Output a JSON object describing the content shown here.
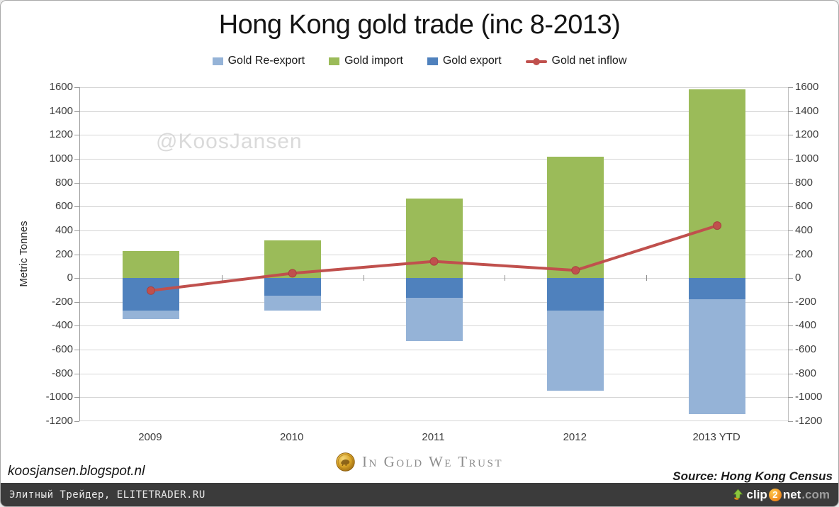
{
  "page": {
    "watermark": "@KoosJansen",
    "footer": {
      "blog_url": "koosjansen.blogspot.nl",
      "brand_text": "In Gold We Trust",
      "source_text": "Source: Hong Kong Census"
    },
    "bottom_bar": {
      "left_text": "Элитный Трейдер, ELITETRADER.RU",
      "clip2net": {
        "clip": "clip",
        "two": "2",
        "net": "net",
        "dotcom": ".com"
      }
    }
  },
  "chart_data": {
    "type": "bar",
    "subtype": "stacked-bars-with-line-overlay",
    "title": "Hong Kong gold trade (inc 8-2013)",
    "ylabel": "Metric Tonnes",
    "xlabel": "",
    "categories": [
      "2009",
      "2010",
      "2011",
      "2012",
      "2013 YTD"
    ],
    "series": [
      {
        "name": "Gold Re-export",
        "type": "bar",
        "color": "#95B3D7",
        "values": [
          -70,
          -125,
          -365,
          -675,
          -965
        ]
      },
      {
        "name": "Gold import",
        "type": "bar",
        "color": "#9BBB59",
        "values": [
          225,
          315,
          665,
          1020,
          1580
        ]
      },
      {
        "name": "Gold export",
        "type": "bar",
        "color": "#4F81BD",
        "values": [
          -275,
          -150,
          -165,
          -270,
          -175
        ]
      },
      {
        "name": "Gold net inflow",
        "type": "line",
        "color": "#C0504D",
        "values": [
          -105,
          40,
          140,
          65,
          440
        ]
      }
    ],
    "stack_order": [
      "Gold import",
      "Gold export",
      "Gold Re-export"
    ],
    "ylim": [
      -1200,
      1600
    ],
    "ytick_step": 200,
    "grid": true,
    "legend_position": "top",
    "axis_mirrored_right": true
  },
  "colors": {
    "gridline": "#d6d6d6",
    "axis": "#9b9b9b",
    "watermark": "#dadada",
    "bottom_bar_bg": "#3b3b3b",
    "clip2net_green": "#8cc63f",
    "clip2net_orange": "#f7931e",
    "coin_gold": "#d9a427"
  }
}
